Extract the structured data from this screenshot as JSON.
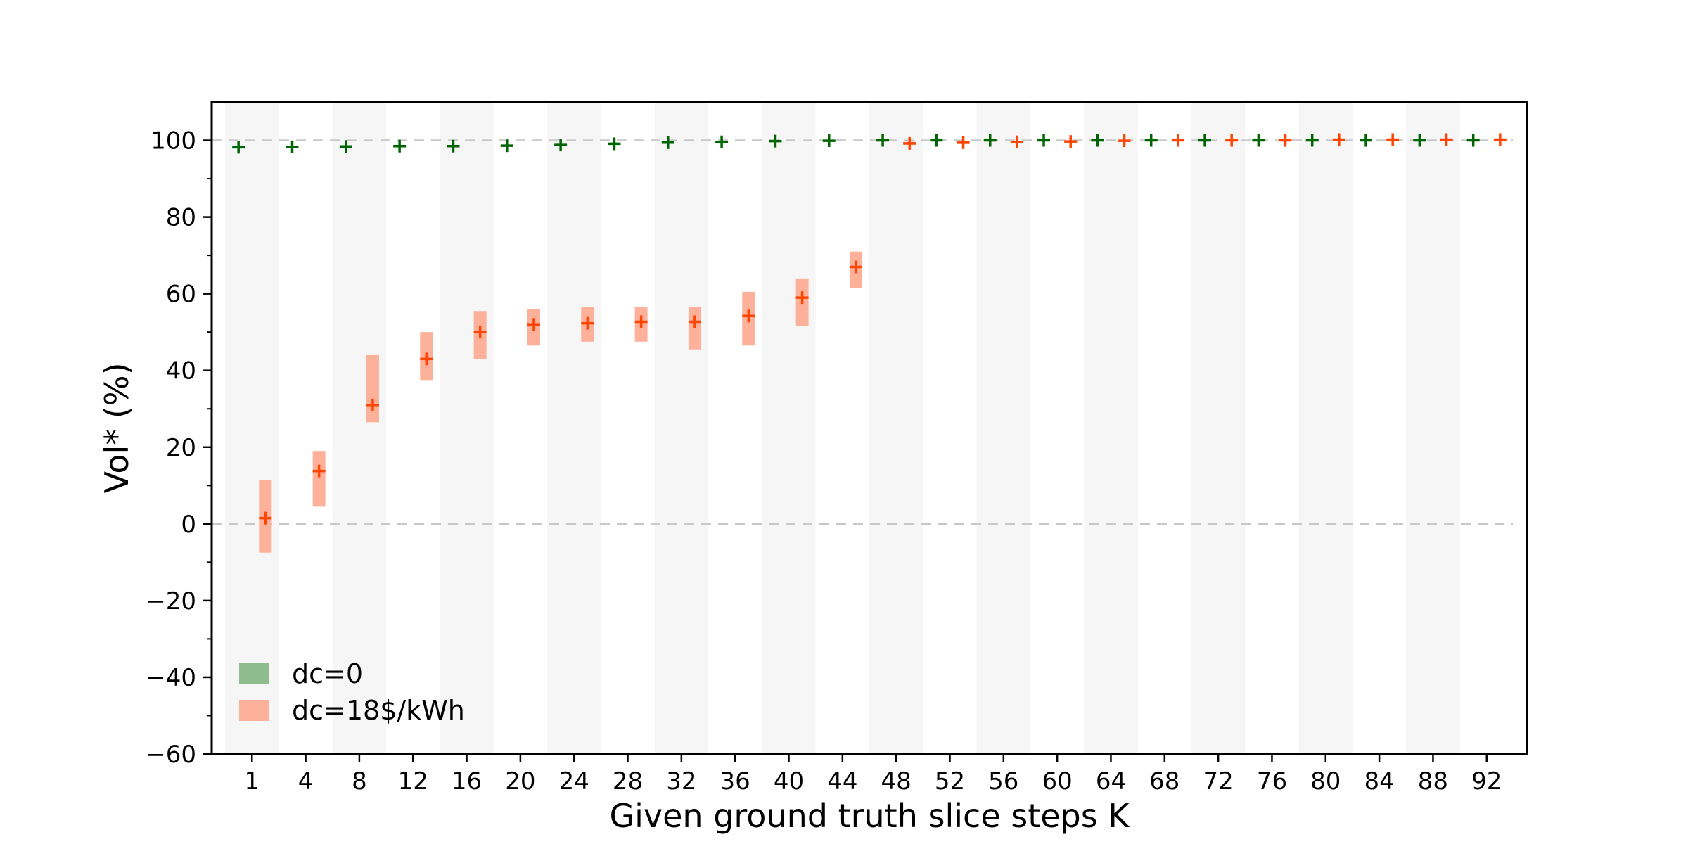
{
  "chart_data": {
    "type": "scatter",
    "xlabel": "Given ground truth slice steps K",
    "ylabel": "Vol* (%)",
    "ylim": [
      -60,
      110
    ],
    "yticks": [
      -60,
      -40,
      -20,
      0,
      20,
      40,
      60,
      80,
      100
    ],
    "categories": [
      "1",
      "4",
      "8",
      "12",
      "16",
      "20",
      "24",
      "28",
      "32",
      "36",
      "40",
      "44",
      "48",
      "52",
      "56",
      "60",
      "64",
      "68",
      "72",
      "76",
      "80",
      "84",
      "88",
      "92"
    ],
    "reference_lines": [
      0,
      100
    ],
    "legend_position": "lower-left",
    "series": [
      {
        "name": "dc=0",
        "marker_color": "#006400",
        "patch_color": "#8fbc8f",
        "values": [
          98.2,
          98.3,
          98.4,
          98.5,
          98.5,
          98.6,
          98.8,
          99.1,
          99.4,
          99.6,
          99.8,
          99.9,
          100.0,
          100.0,
          100.0,
          100.0,
          100.0,
          100.0,
          100.0,
          100.0,
          100.0,
          100.0,
          100.0,
          100.0
        ],
        "lower": [
          98.2,
          98.3,
          98.4,
          98.5,
          98.5,
          98.6,
          98.8,
          99.1,
          99.4,
          99.6,
          99.8,
          99.9,
          100.0,
          100.0,
          100.0,
          100.0,
          100.0,
          100.0,
          100.0,
          100.0,
          100.0,
          100.0,
          100.0,
          100.0
        ],
        "upper": [
          98.2,
          98.3,
          98.4,
          98.5,
          98.5,
          98.6,
          98.8,
          99.1,
          99.4,
          99.6,
          99.8,
          99.9,
          100.0,
          100.0,
          100.0,
          100.0,
          100.0,
          100.0,
          100.0,
          100.0,
          100.0,
          100.0,
          100.0,
          100.0
        ]
      },
      {
        "name": "dc=18$/kWh",
        "marker_color": "#ff4500",
        "patch_color": "#fdb09a",
        "values": [
          1.5,
          13.8,
          31.0,
          43.0,
          50.0,
          52.0,
          52.3,
          52.7,
          52.7,
          54.2,
          59.0,
          67.0,
          99.2,
          99.4,
          99.6,
          99.7,
          99.9,
          100.0,
          100.0,
          100.0,
          100.2,
          100.2,
          100.2,
          100.2
        ],
        "lower": [
          -7.5,
          4.5,
          26.5,
          37.5,
          43.0,
          46.5,
          47.5,
          47.5,
          45.5,
          46.5,
          51.5,
          61.5,
          98.8,
          99.0,
          99.2,
          99.4,
          99.7,
          99.9,
          99.9,
          99.9,
          100.0,
          100.0,
          100.0,
          100.0
        ],
        "upper": [
          11.5,
          19.0,
          44.0,
          50.0,
          55.5,
          56.0,
          56.5,
          56.5,
          56.5,
          60.5,
          64.0,
          71.0,
          99.6,
          99.8,
          99.9,
          100.0,
          100.1,
          100.1,
          100.1,
          100.1,
          100.4,
          100.4,
          100.4,
          100.4
        ]
      }
    ]
  }
}
